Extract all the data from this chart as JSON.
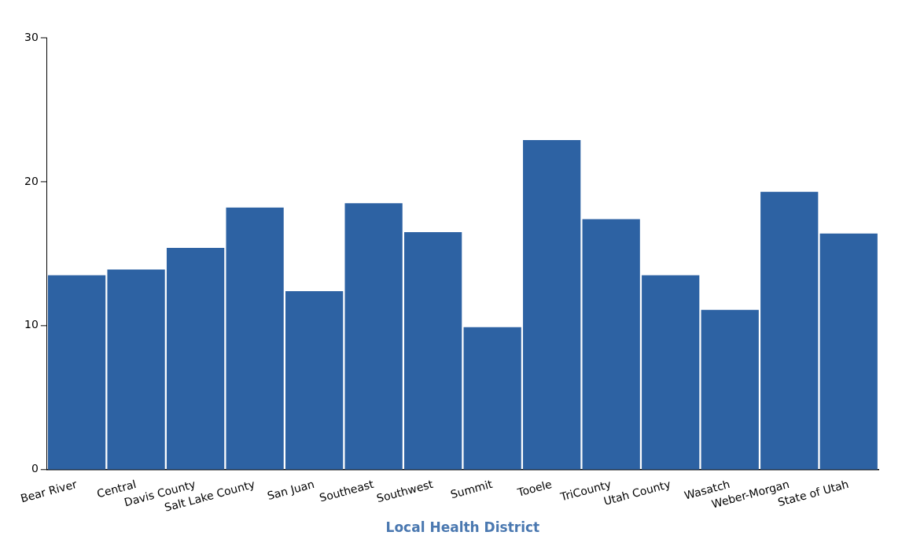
{
  "chart_data": {
    "type": "bar",
    "xlabel": "Local Health District",
    "categories": [
      "Bear River",
      "Central",
      "Davis County",
      "Salt Lake County",
      "San Juan",
      "Southeast",
      "Southwest",
      "Summit",
      "Tooele",
      "TriCounty",
      "Utah County",
      "Wasatch",
      "Weber-Morgan",
      "State of Utah"
    ],
    "values": [
      13.5,
      13.9,
      15.4,
      18.2,
      12.4,
      18.5,
      16.5,
      9.9,
      22.9,
      17.4,
      13.5,
      11.1,
      19.3,
      16.4
    ],
    "color": "#2d62a3",
    "ylim": [
      0,
      30
    ],
    "yticks": [
      0,
      10,
      20,
      30
    ],
    "grid": false
  }
}
